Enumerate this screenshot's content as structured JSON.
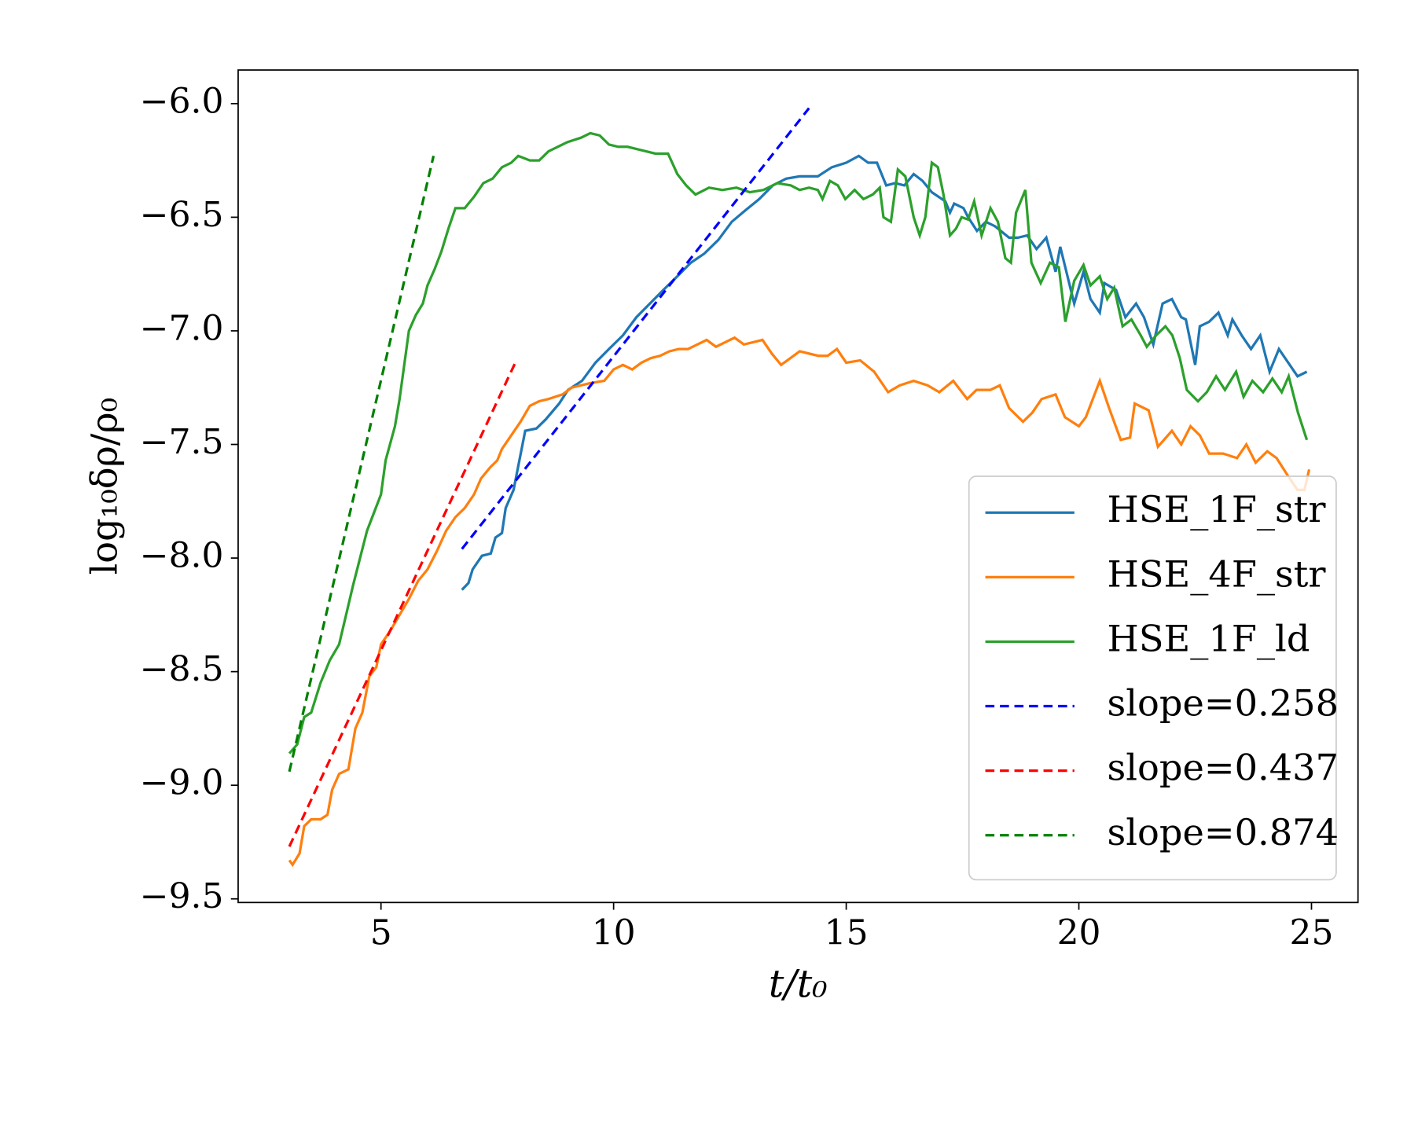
{
  "chart_data": {
    "type": "line",
    "xlabel": "t/t₀",
    "ylabel": "log₁₀δρ/ρ₀",
    "xlim": [
      1.93,
      26.0
    ],
    "ylim": [
      -9.516,
      -5.852
    ],
    "xticks": [
      5,
      10,
      15,
      20,
      25
    ],
    "yticks": [
      {
        "value": -6.0,
        "label": "−6.0"
      },
      {
        "value": -6.5,
        "label": "−6.5"
      },
      {
        "value": -7.0,
        "label": "−7.0"
      },
      {
        "value": -7.5,
        "label": "−7.5"
      },
      {
        "value": -8.0,
        "label": "−8.0"
      },
      {
        "value": -8.5,
        "label": "−8.5"
      },
      {
        "value": -9.0,
        "label": "−9.0"
      },
      {
        "value": -9.5,
        "label": "−9.5"
      }
    ],
    "grid": false,
    "legend": "lower right",
    "series": [
      {
        "name": "HSE_1F_str",
        "color": "#1f77b4",
        "style": "solid",
        "x": [
          6.74,
          6.88,
          6.97,
          7.17,
          7.36,
          7.46,
          7.6,
          7.68,
          7.85,
          8.1,
          8.34,
          8.54,
          8.83,
          9.02,
          9.32,
          9.61,
          9.9,
          10.2,
          10.49,
          10.78,
          11.07,
          11.37,
          11.66,
          11.95,
          12.25,
          12.54,
          12.83,
          13.13,
          13.42,
          13.71,
          14.0,
          14.39,
          14.69,
          15.0,
          15.27,
          15.47,
          15.66,
          15.86,
          16.05,
          16.25,
          16.45,
          16.64,
          16.84,
          17.13,
          17.23,
          17.32,
          17.52,
          17.62,
          17.81,
          18.0,
          18.2,
          18.5,
          18.69,
          18.89,
          19.09,
          19.3,
          19.5,
          19.6,
          19.9,
          20.1,
          20.25,
          20.45,
          20.55,
          20.8,
          21.0,
          21.23,
          21.4,
          21.6,
          21.8,
          22.0,
          22.2,
          22.3,
          22.5,
          22.6,
          22.8,
          23.0,
          23.2,
          23.3,
          23.5,
          23.7,
          23.9,
          24.1,
          24.3,
          24.5,
          24.7,
          24.9
        ],
        "values": [
          -8.14,
          -8.11,
          -8.05,
          -7.99,
          -7.98,
          -7.91,
          -7.89,
          -7.78,
          -7.7,
          -7.44,
          -7.43,
          -7.39,
          -7.32,
          -7.26,
          -7.22,
          -7.14,
          -7.08,
          -7.02,
          -6.94,
          -6.88,
          -6.82,
          -6.76,
          -6.7,
          -6.66,
          -6.6,
          -6.52,
          -6.47,
          -6.42,
          -6.36,
          -6.33,
          -6.32,
          -6.32,
          -6.28,
          -6.26,
          -6.23,
          -6.26,
          -6.26,
          -6.36,
          -6.35,
          -6.36,
          -6.31,
          -6.34,
          -6.39,
          -6.43,
          -6.48,
          -6.44,
          -6.46,
          -6.5,
          -6.56,
          -6.52,
          -6.54,
          -6.59,
          -6.59,
          -6.58,
          -6.64,
          -6.59,
          -6.74,
          -6.63,
          -6.88,
          -6.74,
          -6.86,
          -6.92,
          -6.79,
          -6.82,
          -6.94,
          -6.88,
          -6.94,
          -7.06,
          -6.88,
          -6.86,
          -6.94,
          -6.95,
          -7.15,
          -6.98,
          -6.96,
          -6.92,
          -7.02,
          -6.95,
          -7.02,
          -7.08,
          -7.02,
          -7.18,
          -7.08,
          -7.14,
          -7.2,
          -7.18
        ]
      },
      {
        "name": "HSE_4F_str",
        "color": "#ff7f0e",
        "style": "solid",
        "x": [
          3.03,
          3.1,
          3.25,
          3.35,
          3.5,
          3.7,
          3.85,
          3.95,
          4.1,
          4.3,
          4.45,
          4.6,
          4.75,
          4.9,
          5.0,
          5.2,
          5.4,
          5.6,
          5.8,
          6.0,
          6.2,
          6.4,
          6.6,
          6.8,
          7.0,
          7.15,
          7.35,
          7.5,
          7.6,
          7.8,
          8.0,
          8.2,
          8.4,
          8.6,
          8.9,
          9.1,
          9.3,
          9.5,
          9.8,
          10.0,
          10.2,
          10.4,
          10.6,
          10.8,
          11.0,
          11.2,
          11.4,
          11.6,
          11.8,
          12.0,
          12.2,
          12.4,
          12.6,
          12.8,
          13.0,
          13.2,
          13.4,
          13.6,
          13.8,
          14.0,
          14.2,
          14.4,
          14.6,
          14.8,
          15.0,
          15.3,
          15.6,
          15.9,
          16.15,
          16.45,
          16.75,
          17.0,
          17.3,
          17.6,
          17.8,
          18.1,
          18.3,
          18.5,
          18.8,
          19.0,
          19.2,
          19.5,
          19.7,
          20.0,
          20.15,
          20.45,
          20.65,
          20.9,
          21.1,
          21.2,
          21.5,
          21.7,
          22.0,
          22.2,
          22.4,
          22.6,
          22.8,
          23.1,
          23.4,
          23.6,
          23.8,
          24.05,
          24.25,
          24.5,
          24.7,
          24.85,
          24.95
        ],
        "values": [
          -9.33,
          -9.35,
          -9.3,
          -9.18,
          -9.15,
          -9.15,
          -9.13,
          -9.02,
          -8.95,
          -8.93,
          -8.75,
          -8.68,
          -8.52,
          -8.48,
          -8.38,
          -8.32,
          -8.25,
          -8.18,
          -8.1,
          -8.05,
          -7.97,
          -7.88,
          -7.82,
          -7.78,
          -7.72,
          -7.65,
          -7.6,
          -7.57,
          -7.52,
          -7.46,
          -7.4,
          -7.33,
          -7.31,
          -7.3,
          -7.28,
          -7.25,
          -7.24,
          -7.23,
          -7.22,
          -7.17,
          -7.15,
          -7.17,
          -7.14,
          -7.12,
          -7.11,
          -7.09,
          -7.08,
          -7.08,
          -7.06,
          -7.04,
          -7.07,
          -7.05,
          -7.03,
          -7.06,
          -7.05,
          -7.04,
          -7.1,
          -7.15,
          -7.12,
          -7.09,
          -7.1,
          -7.11,
          -7.11,
          -7.08,
          -7.14,
          -7.13,
          -7.18,
          -7.27,
          -7.24,
          -7.22,
          -7.24,
          -7.27,
          -7.22,
          -7.3,
          -7.26,
          -7.26,
          -7.24,
          -7.34,
          -7.4,
          -7.36,
          -7.3,
          -7.28,
          -7.38,
          -7.42,
          -7.38,
          -7.22,
          -7.34,
          -7.48,
          -7.47,
          -7.32,
          -7.35,
          -7.51,
          -7.44,
          -7.5,
          -7.42,
          -7.46,
          -7.54,
          -7.54,
          -7.56,
          -7.5,
          -7.58,
          -7.53,
          -7.56,
          -7.64,
          -7.7,
          -7.7,
          -7.61
        ]
      },
      {
        "name": "HSE_1F_ld",
        "color": "#2ca02c",
        "style": "solid",
        "x": [
          3.03,
          3.2,
          3.35,
          3.5,
          3.7,
          3.9,
          4.1,
          4.25,
          4.4,
          4.55,
          4.7,
          4.85,
          5.0,
          5.1,
          5.3,
          5.4,
          5.5,
          5.6,
          5.75,
          5.9,
          6.0,
          6.15,
          6.3,
          6.45,
          6.6,
          6.8,
          7.0,
          7.2,
          7.4,
          7.6,
          7.8,
          7.95,
          8.2,
          8.4,
          8.6,
          8.8,
          9.0,
          9.3,
          9.5,
          9.7,
          9.9,
          10.1,
          10.3,
          10.5,
          10.7,
          10.9,
          11.17,
          11.37,
          11.56,
          11.76,
          12.05,
          12.34,
          12.64,
          12.93,
          13.22,
          13.52,
          13.81,
          14.0,
          14.2,
          14.39,
          14.49,
          14.65,
          14.82,
          14.98,
          15.18,
          15.37,
          15.57,
          15.72,
          15.8,
          15.96,
          16.11,
          16.27,
          16.45,
          16.58,
          16.7,
          16.84,
          16.97,
          17.09,
          17.23,
          17.36,
          17.48,
          17.62,
          17.75,
          17.91,
          18.1,
          18.26,
          18.42,
          18.54,
          18.65,
          18.85,
          18.98,
          19.18,
          19.38,
          19.57,
          19.71,
          19.9,
          20.1,
          20.25,
          20.45,
          20.61,
          20.76,
          20.94,
          21.13,
          21.33,
          21.46,
          21.66,
          21.86,
          22.01,
          22.17,
          22.32,
          22.56,
          22.75,
          22.95,
          23.14,
          23.38,
          23.54,
          23.73,
          23.96,
          24.16,
          24.36,
          24.51,
          24.71,
          24.9
        ],
        "values": [
          -8.86,
          -8.82,
          -8.7,
          -8.68,
          -8.55,
          -8.45,
          -8.38,
          -8.25,
          -8.12,
          -8.0,
          -7.88,
          -7.8,
          -7.72,
          -7.57,
          -7.42,
          -7.3,
          -7.15,
          -7.0,
          -6.93,
          -6.88,
          -6.8,
          -6.73,
          -6.65,
          -6.55,
          -6.46,
          -6.46,
          -6.41,
          -6.35,
          -6.33,
          -6.28,
          -6.26,
          -6.23,
          -6.25,
          -6.25,
          -6.21,
          -6.19,
          -6.17,
          -6.15,
          -6.13,
          -6.14,
          -6.18,
          -6.19,
          -6.19,
          -6.2,
          -6.21,
          -6.22,
          -6.22,
          -6.31,
          -6.36,
          -6.4,
          -6.37,
          -6.38,
          -6.37,
          -6.39,
          -6.38,
          -6.35,
          -6.36,
          -6.38,
          -6.37,
          -6.38,
          -6.42,
          -6.34,
          -6.36,
          -6.42,
          -6.38,
          -6.42,
          -6.4,
          -6.37,
          -6.5,
          -6.52,
          -6.29,
          -6.32,
          -6.5,
          -6.58,
          -6.5,
          -6.26,
          -6.28,
          -6.4,
          -6.58,
          -6.55,
          -6.5,
          -6.51,
          -6.43,
          -6.58,
          -6.46,
          -6.52,
          -6.68,
          -6.7,
          -6.48,
          -6.38,
          -6.7,
          -6.79,
          -6.7,
          -6.72,
          -6.96,
          -6.78,
          -6.71,
          -6.8,
          -6.76,
          -6.86,
          -6.81,
          -6.98,
          -6.95,
          -7.02,
          -7.07,
          -7.02,
          -6.98,
          -7.02,
          -7.12,
          -7.26,
          -7.31,
          -7.27,
          -7.2,
          -7.26,
          -7.18,
          -7.29,
          -7.22,
          -7.27,
          -7.21,
          -7.27,
          -7.2,
          -7.36,
          -7.48
        ]
      },
      {
        "name": "slope=0.258",
        "color": "#0000ff",
        "style": "dashed",
        "x": [
          6.74,
          14.2
        ],
        "values": [
          -7.96,
          -6.02
        ]
      },
      {
        "name": "slope=0.437",
        "color": "#ff0000",
        "style": "dashed",
        "x": [
          3.03,
          7.91
        ],
        "values": [
          -9.27,
          -7.13
        ]
      },
      {
        "name": "slope=0.874",
        "color": "#008000",
        "style": "dashed",
        "x": [
          3.03,
          6.13
        ],
        "values": [
          -8.94,
          -6.23
        ]
      }
    ]
  }
}
